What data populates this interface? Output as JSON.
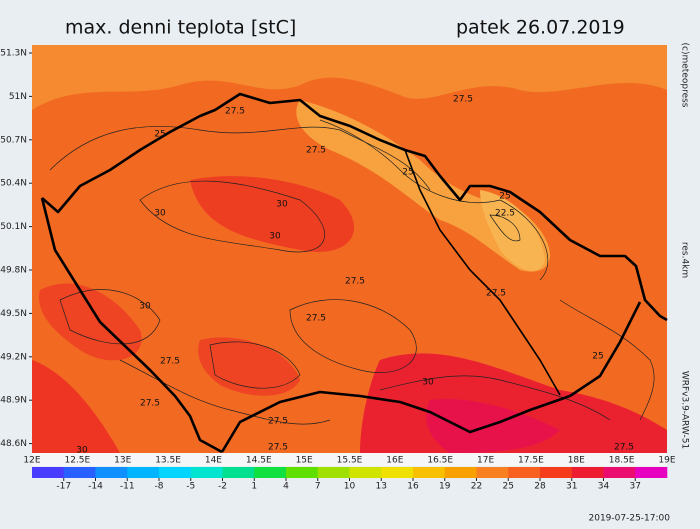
{
  "header": {
    "title": "max. denni teplota [stC]",
    "date": "patek 26.07.2019"
  },
  "map": {
    "lat_labels": [
      "51.3N",
      "51N",
      "50.7N",
      "50.4N",
      "50.1N",
      "49.8N",
      "49.5N",
      "49.2N",
      "48.9N",
      "48.6N"
    ],
    "lon_labels": [
      "12E",
      "12.5E",
      "13E",
      "13.5E",
      "14E",
      "14.5E",
      "15E",
      "15.5E",
      "16E",
      "16.5E",
      "17E",
      "17.5E",
      "18E",
      "18.5E",
      "19E"
    ],
    "contour_labels": [
      "27.5",
      "27.5",
      "25",
      "27.5",
      "25",
      "25",
      "22.5",
      "30",
      "30",
      "30",
      "27.5",
      "27.5",
      "30",
      "27.5",
      "27.5",
      "25",
      "30",
      "27.5",
      "27.5",
      "30",
      "27.5",
      "27.5"
    ]
  },
  "colorbar": {
    "values": [
      -17,
      -14,
      -11,
      -8,
      -5,
      -2,
      1,
      4,
      7,
      10,
      13,
      16,
      19,
      22,
      25,
      28,
      31,
      34,
      37
    ],
    "colors": [
      "#4a3cff",
      "#2860ff",
      "#1090ff",
      "#00b4ff",
      "#00d4ff",
      "#00e4d0",
      "#00e090",
      "#10e040",
      "#60e000",
      "#a0e000",
      "#d0e400",
      "#f0e000",
      "#f8c000",
      "#f8a000",
      "#f88020",
      "#f86020",
      "#f43c1c",
      "#ee1c30",
      "#ec0c70",
      "#e800c0"
    ]
  },
  "side": {
    "credit": "(c)meteopress",
    "resolution": "res.4km",
    "model": "WRFv3.9-ARW-51"
  },
  "footer": {
    "run_time": "2019-07-25-17:00"
  }
}
